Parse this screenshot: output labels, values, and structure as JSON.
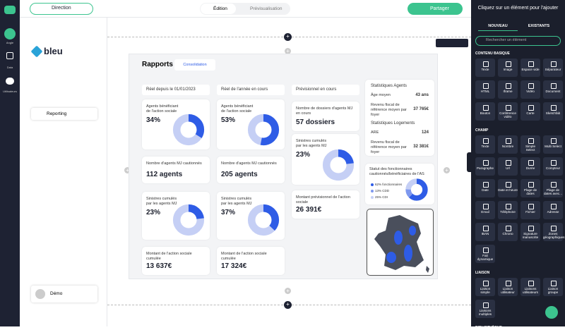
{
  "sidebar": {
    "items": [
      "Angle",
      "Data",
      "Utilisateurs"
    ]
  },
  "topbar": {
    "view": "Direction",
    "tabs": [
      "Édition",
      "Prévisualisation"
    ],
    "share": "Partager"
  },
  "left_panel": {
    "logo": "bleu",
    "menu": "Reporting",
    "user": "Démo"
  },
  "report": {
    "title": "Rapports",
    "tab": "Consolidation",
    "columns": [
      {
        "header": "Réel depuis le 01/01/2023",
        "cards": [
          {
            "label": "Agents bénéficiant de l'action sociale",
            "value": 34,
            "value_label": "34%"
          },
          {
            "label": "Nombre d'agents MJ cautionnés",
            "text": "112 agents"
          },
          {
            "label": "Sinistres cumulés par les agents MJ",
            "value": 23,
            "value_label": "23%"
          },
          {
            "label": "Montant de l'action sociale cumulée",
            "text": "13 637€"
          }
        ]
      },
      {
        "header": "Réel de l'année en cours",
        "cards": [
          {
            "label": "Agents bénéficiant de l'action sociale",
            "value": 53,
            "value_label": "53%"
          },
          {
            "label": "Nombre d'agents MJ cautionnés",
            "text": "205 agents"
          },
          {
            "label": "Sinistres cumulés par les agents MJ",
            "value": 37,
            "value_label": "37%"
          },
          {
            "label": "Montant de l'action sociale cumulée",
            "text": "17 324€"
          }
        ]
      },
      {
        "header": "Prévisionnel en cours",
        "cards": [
          {
            "label": "Nombre de dossiers d'agents MJ en cours",
            "text": "57 dossiers"
          },
          {
            "label": "Sinistres cumulés par les agents MJ",
            "value": 23,
            "value_label": "23%"
          },
          {
            "label": "Montant prévisionnel de l'action sociale",
            "text": "26 391€"
          }
        ]
      }
    ],
    "stats": [
      {
        "title": "Statistiques Agents",
        "rows": [
          [
            "Âge moyen",
            "43 ans"
          ],
          [
            "Revenu fiscal de référence moyen par foyer",
            "37 765€"
          ]
        ]
      },
      {
        "title": "Statistiques Logements",
        "rows": [
          [
            "ARE",
            "124"
          ],
          [
            "Revenu fiscal de référence moyen par foyer",
            "32 381€"
          ]
        ]
      }
    ],
    "status": {
      "title": "Statut des fonctionnaires cautionnés/bénéficiaires de l'AS",
      "segments": [
        {
          "value": 62,
          "label": "62% fonctionnaires",
          "color": "#2e5ce6"
        },
        {
          "value": 13,
          "label": "13% CDD",
          "color": "#7e98ee"
        },
        {
          "value": 25,
          "label": "25% CDI",
          "color": "#c5cff5"
        }
      ]
    }
  },
  "right_panel": {
    "title": "Cliquez sur un élément pour l'ajouter",
    "tabs": [
      "NOUVEAU",
      "EXISTANTS"
    ],
    "search": "Rechercher un élément",
    "sections": [
      {
        "title": "CONTENU BASIQUE",
        "items": [
          "Texte",
          "Image",
          "Espace vide",
          "Séparateur",
          "HTML",
          "Iframe",
          "Vidéo",
          "Document",
          "Bouton",
          "Conférence vidéo",
          "Carte",
          "Sketchfab"
        ]
      },
      {
        "title": "CHAMP",
        "items": [
          "Texte",
          "Nombre",
          "Simple Select",
          "Multi Select",
          "Paragraphe",
          "Url",
          "Durée",
          "Compteur",
          "Date",
          "Date et heure",
          "Plage de dates",
          "Plage de dates avec...",
          "Email",
          "Téléphone",
          "Fichier",
          "Adresse",
          "IBAN",
          "Chrono",
          "Signature manuscrite",
          "Zones géographiques",
          "Fait dynamique"
        ]
      },
      {
        "title": "LIAISON",
        "items": [
          "Liaison simple",
          "Liaison utilisateur",
          "Liaisons utilisateurs",
          "Liaison groupe",
          "Liaisons multiples"
        ]
      },
      {
        "title": "BIBLIOTHÈQUE"
      }
    ]
  }
}
